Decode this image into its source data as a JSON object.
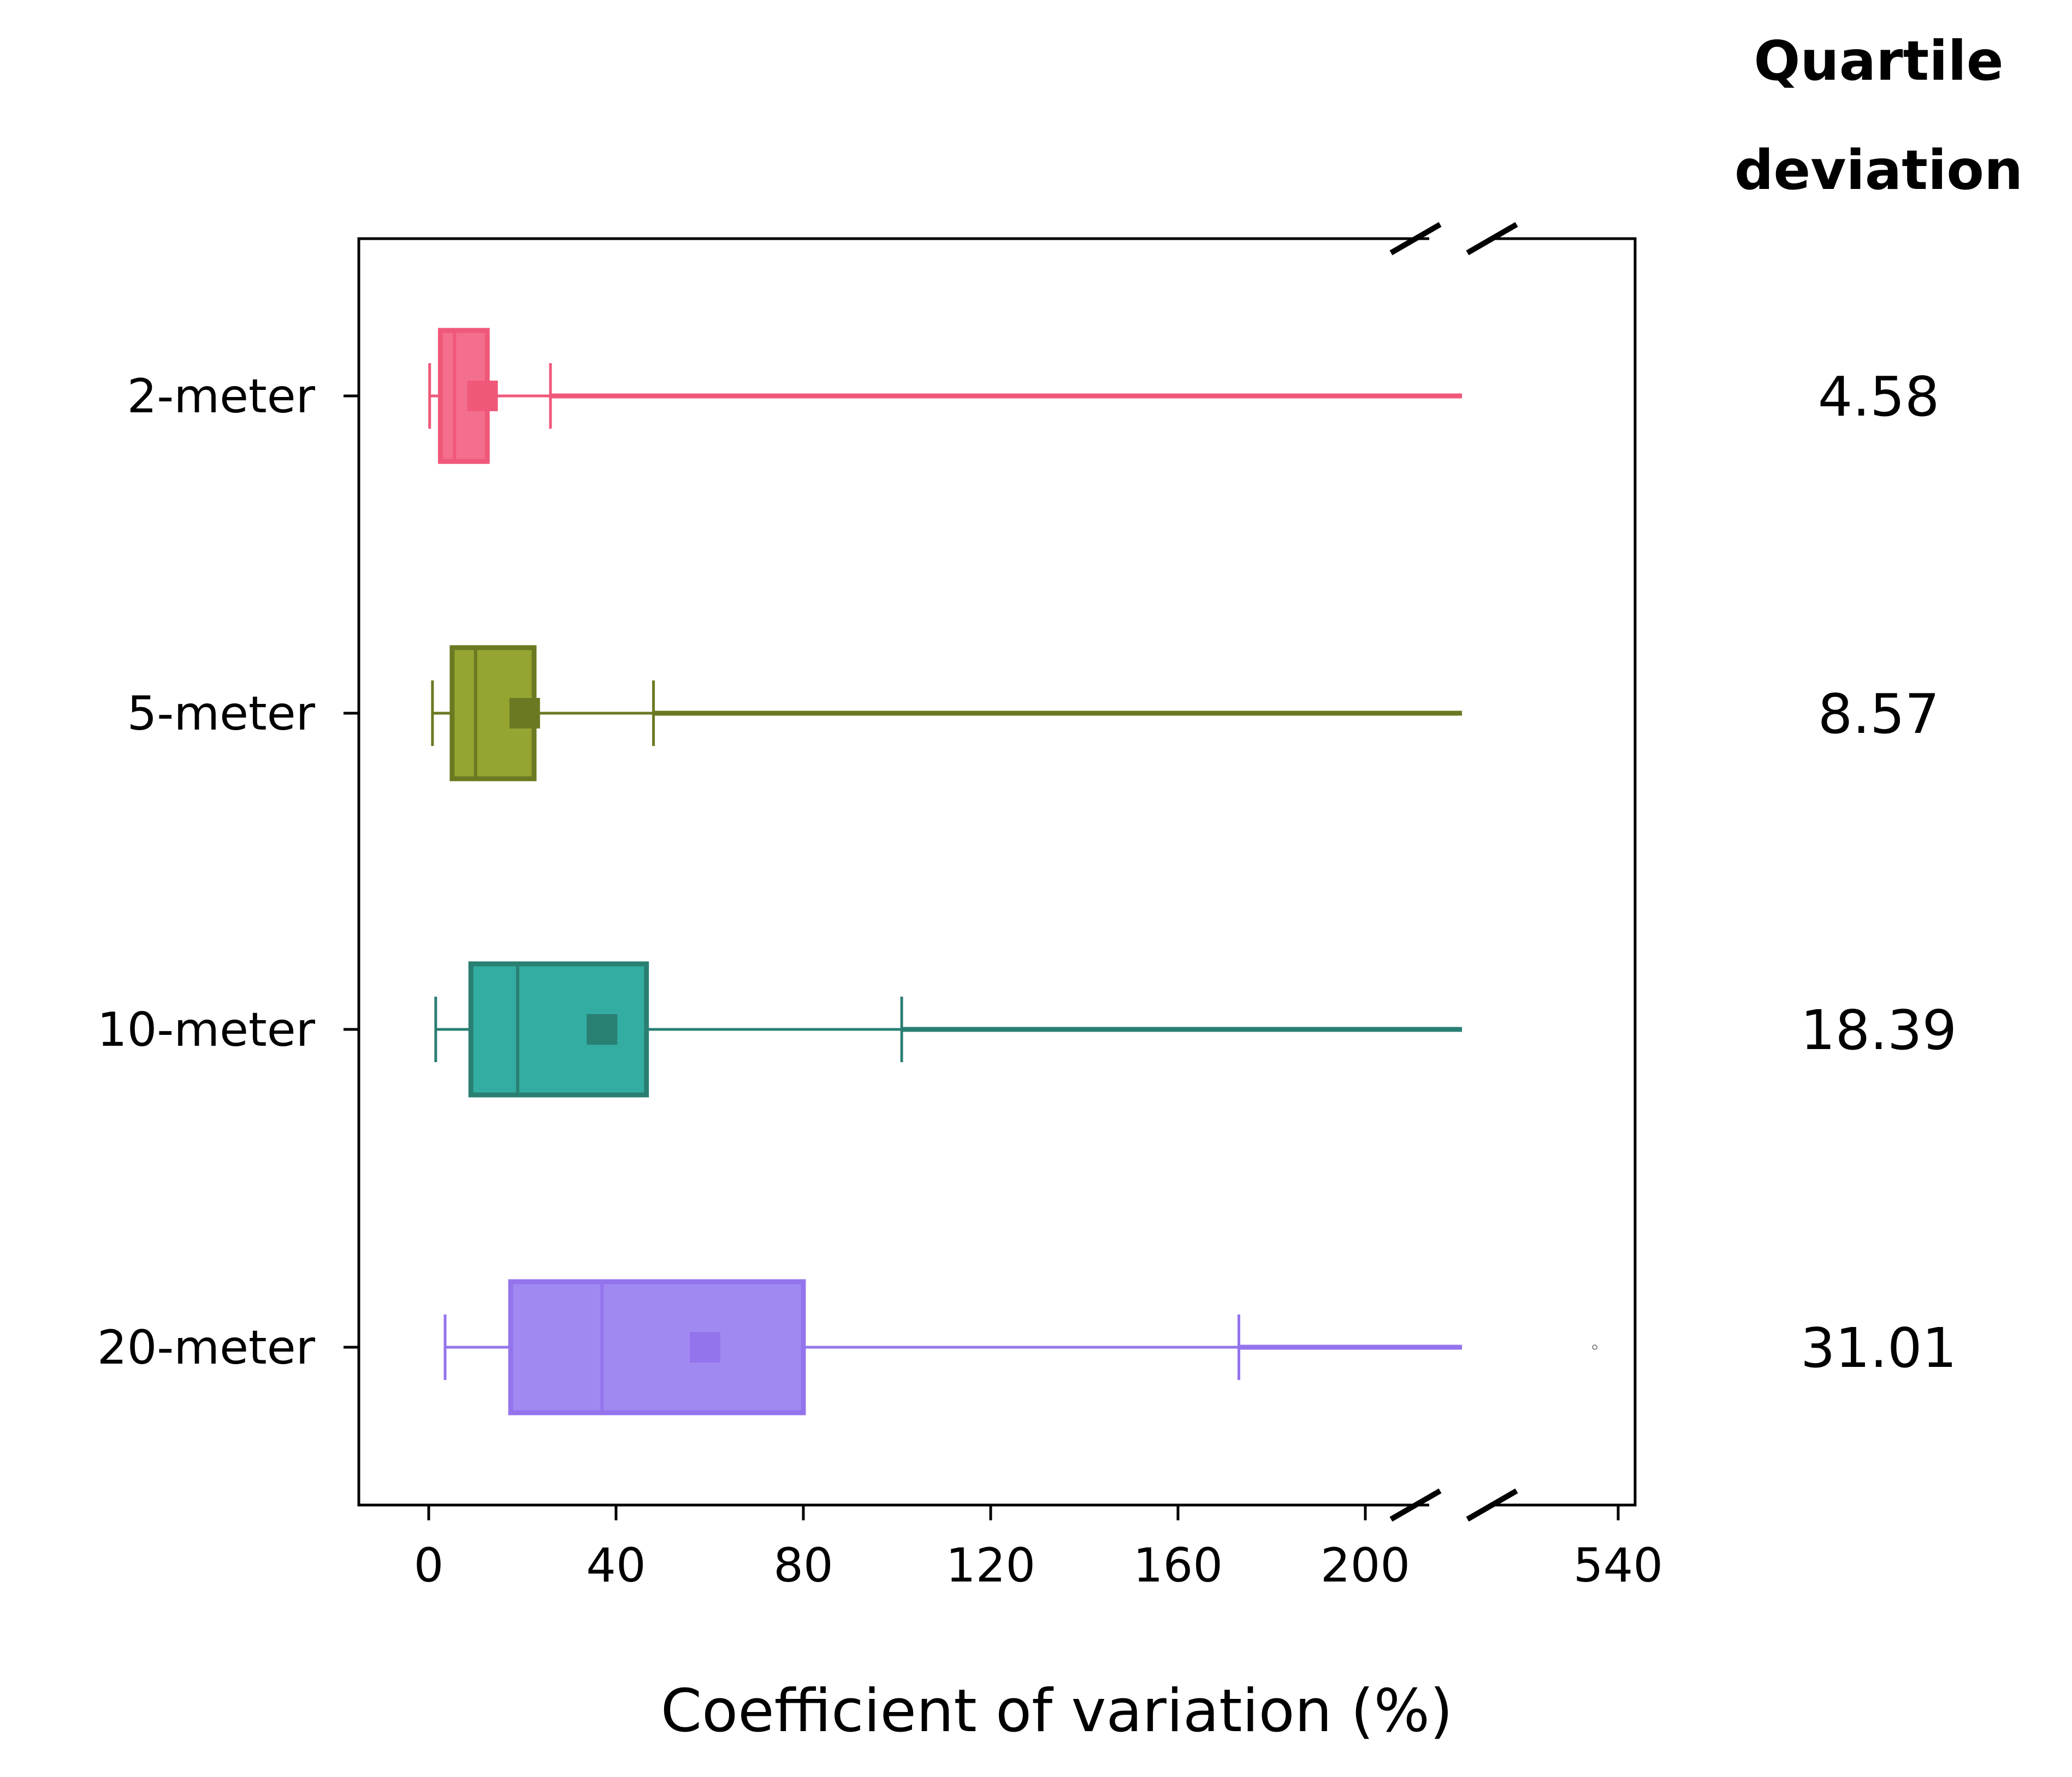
{
  "chart_data": {
    "type": "box",
    "orientation": "horizontal",
    "xlabel": "Coefficient of variation (%)",
    "ylabel": "",
    "x_ticks": [
      0,
      40,
      80,
      120,
      160,
      200,
      540
    ],
    "axis_break": {
      "from": 215,
      "to": 530
    },
    "xlim": [
      -15,
      545
    ],
    "grid": false,
    "side_column": {
      "title_lines": [
        "Quartile",
        "deviation"
      ]
    },
    "categories": [
      "2-meter",
      "5-meter",
      "10-meter",
      "20-meter"
    ],
    "series": [
      {
        "name": "2-meter",
        "color": "#f0587a",
        "fill": "#f46f8d",
        "whisker_low": 0.2,
        "q1": 2.5,
        "median": 5.5,
        "q3": 12.5,
        "whisker_high": 26,
        "mean": 11.5,
        "outliers_to": 220,
        "quartile_deviation": "4.58"
      },
      {
        "name": "5-meter",
        "color": "#6b7a22",
        "fill": "#96a531",
        "whisker_low": 0.8,
        "q1": 5,
        "median": 10,
        "q3": 22.5,
        "whisker_high": 48,
        "mean": 20.5,
        "outliers_to": 220,
        "quartile_deviation": "8.57"
      },
      {
        "name": "10-meter",
        "color": "#2a7f73",
        "fill": "#33ada1",
        "whisker_low": 1.5,
        "q1": 9,
        "median": 19,
        "q3": 46.5,
        "whisker_high": 101,
        "mean": 37,
        "outliers_to": 220,
        "quartile_deviation": "18.39"
      },
      {
        "name": "20-meter",
        "color": "#9474ec",
        "fill": "#a189f2",
        "whisker_low": 3.5,
        "q1": 17.5,
        "median": 37,
        "q3": 80,
        "whisker_high": 173,
        "mean": 59,
        "outliers_to": 220,
        "extra_outlier": 535,
        "quartile_deviation": "31.01"
      }
    ]
  }
}
